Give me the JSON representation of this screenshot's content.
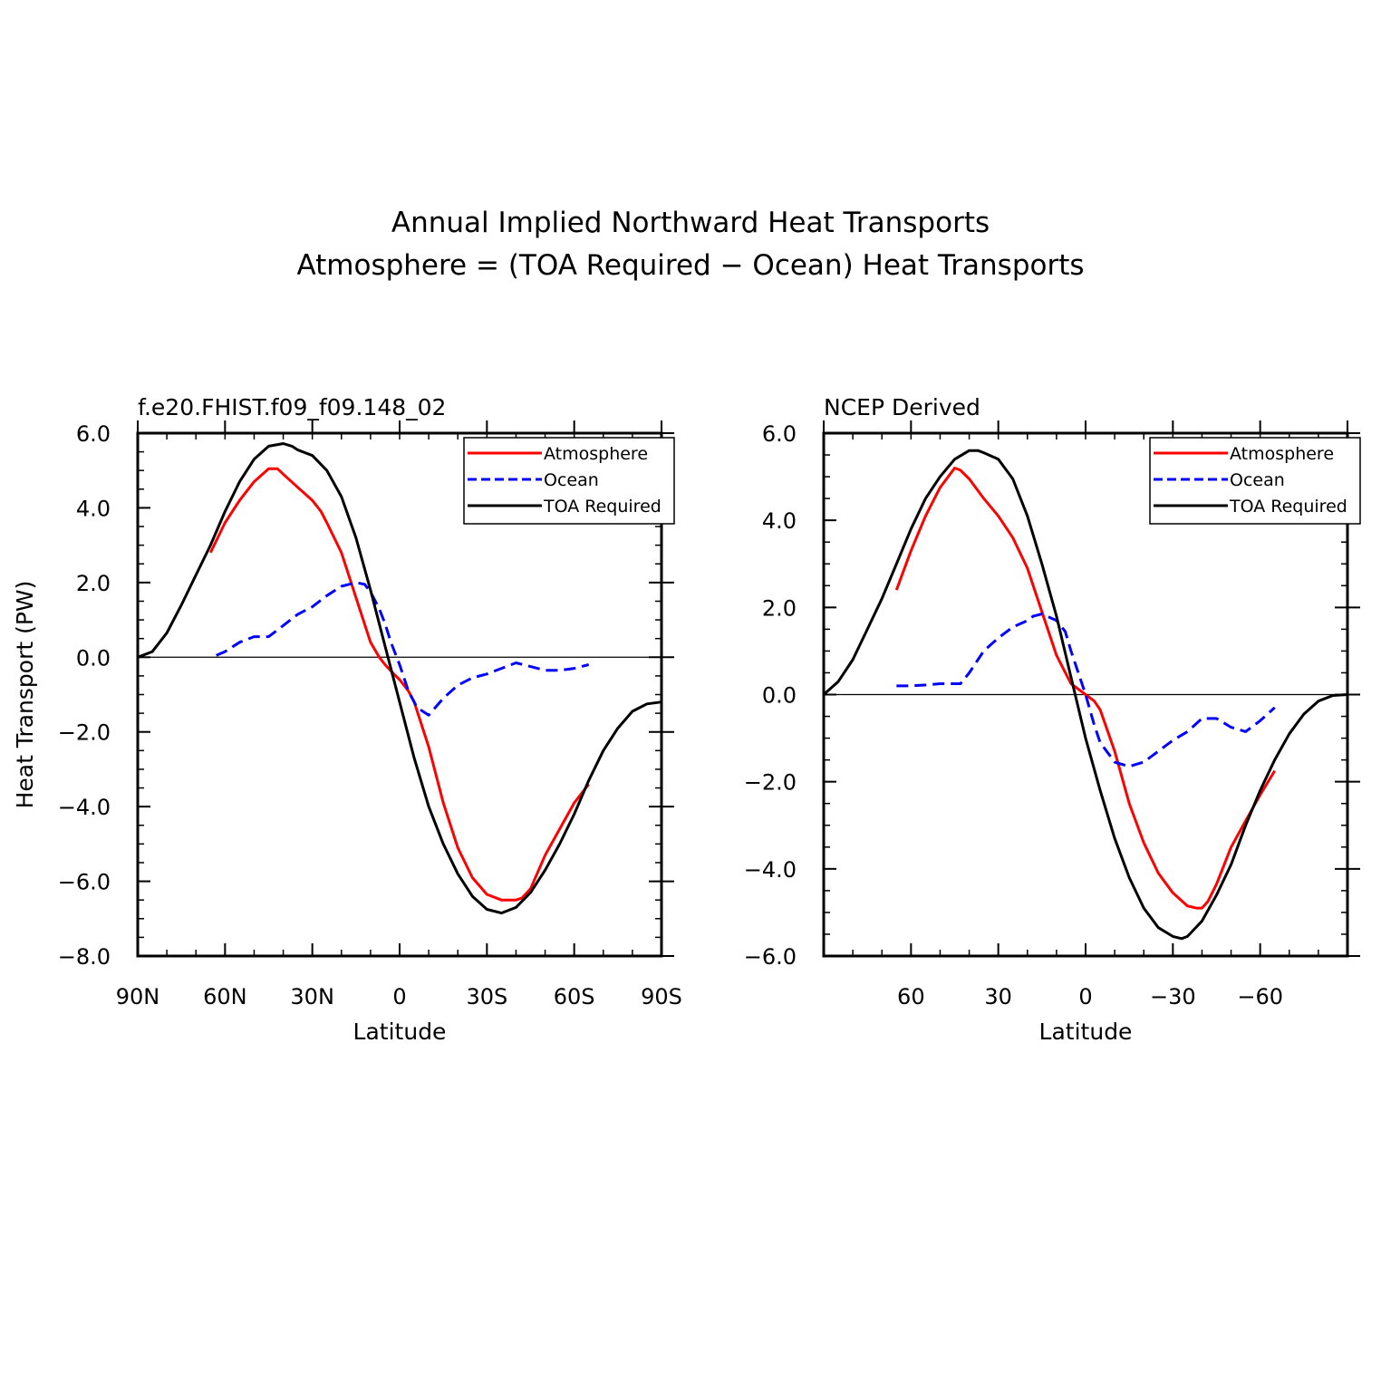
{
  "figure": {
    "title_lines": [
      "Annual Implied Northward Heat Transports",
      "Atmosphere = (TOA Required − Ocean) Heat Transports"
    ]
  },
  "colors": {
    "atmosphere": "#ff0000",
    "ocean": "#0000ff",
    "toa": "#000000"
  },
  "chart_data": [
    {
      "type": "line",
      "title": "f.e20.FHIST.f09_f09.148_02",
      "xlabel": "Latitude",
      "ylabel": "Heat Transport (PW)",
      "xlim": [
        90,
        -90
      ],
      "ylim": [
        -8,
        6
      ],
      "xticks": [
        90,
        60,
        30,
        0,
        -30,
        -60,
        -90
      ],
      "xtick_labels": [
        "90N",
        "60N",
        "30N",
        "0",
        "30S",
        "60S",
        "90S"
      ],
      "yticks": [
        -8,
        -6,
        -4,
        -2,
        0,
        2,
        4,
        6
      ],
      "ytick_labels": [
        "−8.0",
        "−6.0",
        "−4.0",
        "−2.0",
        "0.0",
        "2.0",
        "4.0",
        "6.0"
      ],
      "legend_position": "top-right",
      "series": [
        {
          "name": "Atmosphere",
          "key": "atmosphere",
          "style": "solid",
          "x": [
            65,
            60,
            55,
            50,
            45,
            42,
            40,
            35,
            30,
            27,
            25,
            20,
            15,
            10,
            7,
            5,
            2,
            0,
            -3,
            -5,
            -10,
            -15,
            -20,
            -25,
            -30,
            -35,
            -40,
            -42,
            -45,
            -50,
            -55,
            -60,
            -65
          ],
          "y": [
            2.8,
            3.6,
            4.2,
            4.7,
            5.05,
            5.05,
            4.9,
            4.55,
            4.2,
            3.9,
            3.6,
            2.8,
            1.6,
            0.4,
            0.0,
            -0.2,
            -0.45,
            -0.6,
            -0.9,
            -1.2,
            -2.4,
            -3.9,
            -5.1,
            -5.9,
            -6.35,
            -6.5,
            -6.5,
            -6.45,
            -6.2,
            -5.3,
            -4.6,
            -3.9,
            -3.4
          ]
        },
        {
          "name": "Ocean",
          "key": "ocean",
          "style": "dashed",
          "x": [
            63,
            60,
            55,
            50,
            45,
            40,
            35,
            30,
            25,
            20,
            15,
            12,
            10,
            7,
            5,
            3,
            0,
            -3,
            -6,
            -10,
            -15,
            -20,
            -25,
            -30,
            -35,
            -40,
            -45,
            -50,
            -55,
            -60,
            -65
          ],
          "y": [
            0.05,
            0.15,
            0.4,
            0.55,
            0.55,
            0.85,
            1.15,
            1.35,
            1.65,
            1.9,
            2.0,
            1.95,
            1.75,
            1.3,
            0.9,
            0.4,
            -0.2,
            -0.9,
            -1.35,
            -1.55,
            -1.1,
            -0.75,
            -0.55,
            -0.45,
            -0.3,
            -0.15,
            -0.25,
            -0.35,
            -0.35,
            -0.3,
            -0.2
          ]
        },
        {
          "name": "TOA Required",
          "key": "toa",
          "style": "solid",
          "x": [
            90,
            85,
            80,
            75,
            70,
            65,
            60,
            55,
            50,
            45,
            40,
            37,
            35,
            30,
            25,
            20,
            15,
            10,
            5,
            0,
            -5,
            -10,
            -15,
            -20,
            -25,
            -30,
            -35,
            -40,
            -45,
            -50,
            -55,
            -60,
            -65,
            -70,
            -75,
            -80,
            -85,
            -90
          ],
          "y": [
            0.0,
            0.15,
            0.65,
            1.4,
            2.2,
            3.0,
            3.9,
            4.7,
            5.3,
            5.65,
            5.72,
            5.65,
            5.55,
            5.4,
            5.0,
            4.3,
            3.2,
            1.8,
            0.3,
            -1.2,
            -2.7,
            -4.0,
            -5.0,
            -5.8,
            -6.4,
            -6.75,
            -6.85,
            -6.7,
            -6.3,
            -5.7,
            -5.0,
            -4.2,
            -3.3,
            -2.5,
            -1.9,
            -1.45,
            -1.25,
            -1.2
          ]
        }
      ]
    },
    {
      "type": "line",
      "title": "NCEP Derived",
      "xlabel": "Latitude",
      "ylabel": "",
      "xlim": [
        90,
        -90
      ],
      "ylim": [
        -6,
        6
      ],
      "xticks": [
        60,
        30,
        0,
        -30,
        -60
      ],
      "xtick_labels": [
        "60",
        "30",
        "0",
        "−30",
        "−60"
      ],
      "yticks": [
        -6,
        -4,
        -2,
        0,
        2,
        4,
        6
      ],
      "ytick_labels": [
        "−6.0",
        "−4.0",
        "−2.0",
        "0.0",
        "2.0",
        "4.0",
        "6.0"
      ],
      "legend_position": "top-right",
      "series": [
        {
          "name": "Atmosphere",
          "key": "atmosphere",
          "style": "solid",
          "x": [
            65,
            60,
            55,
            50,
            45,
            43,
            40,
            35,
            30,
            25,
            20,
            15,
            10,
            5,
            2,
            0,
            -3,
            -5,
            -10,
            -15,
            -20,
            -25,
            -30,
            -35,
            -38,
            -40,
            -42,
            -45,
            -50,
            -55,
            -60,
            -65
          ],
          "y": [
            2.4,
            3.3,
            4.1,
            4.75,
            5.2,
            5.15,
            4.95,
            4.5,
            4.1,
            3.6,
            2.9,
            1.9,
            0.9,
            0.25,
            0.1,
            0.0,
            -0.15,
            -0.35,
            -1.3,
            -2.5,
            -3.4,
            -4.1,
            -4.55,
            -4.85,
            -4.9,
            -4.9,
            -4.75,
            -4.35,
            -3.5,
            -2.9,
            -2.3,
            -1.75
          ]
        },
        {
          "name": "Ocean",
          "key": "ocean",
          "style": "dashed",
          "x": [
            65,
            60,
            55,
            50,
            45,
            43,
            40,
            35,
            30,
            25,
            20,
            18,
            15,
            10,
            7,
            5,
            2,
            0,
            -3,
            -5,
            -10,
            -15,
            -20,
            -25,
            -30,
            -35,
            -40,
            -45,
            -50,
            -55,
            -60,
            -65
          ],
          "y": [
            0.2,
            0.2,
            0.22,
            0.25,
            0.25,
            0.25,
            0.5,
            1.0,
            1.3,
            1.55,
            1.7,
            1.8,
            1.85,
            1.7,
            1.45,
            1.0,
            0.4,
            0.0,
            -0.7,
            -1.1,
            -1.55,
            -1.65,
            -1.55,
            -1.3,
            -1.05,
            -0.85,
            -0.55,
            -0.55,
            -0.75,
            -0.85,
            -0.6,
            -0.3
          ]
        },
        {
          "name": "TOA Required",
          "key": "toa",
          "style": "solid",
          "x": [
            90,
            85,
            80,
            75,
            70,
            65,
            60,
            55,
            50,
            45,
            40,
            37,
            35,
            30,
            25,
            20,
            15,
            10,
            5,
            0,
            -5,
            -10,
            -15,
            -20,
            -25,
            -30,
            -33,
            -35,
            -40,
            -45,
            -50,
            -55,
            -60,
            -65,
            -70,
            -75,
            -80,
            -85,
            -90
          ],
          "y": [
            0.0,
            0.3,
            0.8,
            1.5,
            2.2,
            3.0,
            3.8,
            4.5,
            5.0,
            5.4,
            5.6,
            5.6,
            5.55,
            5.4,
            4.95,
            4.1,
            3.0,
            1.8,
            0.4,
            -1.0,
            -2.2,
            -3.3,
            -4.2,
            -4.9,
            -5.35,
            -5.55,
            -5.6,
            -5.55,
            -5.2,
            -4.6,
            -3.9,
            -3.0,
            -2.2,
            -1.5,
            -0.9,
            -0.45,
            -0.15,
            -0.02,
            0.0
          ]
        }
      ]
    }
  ]
}
